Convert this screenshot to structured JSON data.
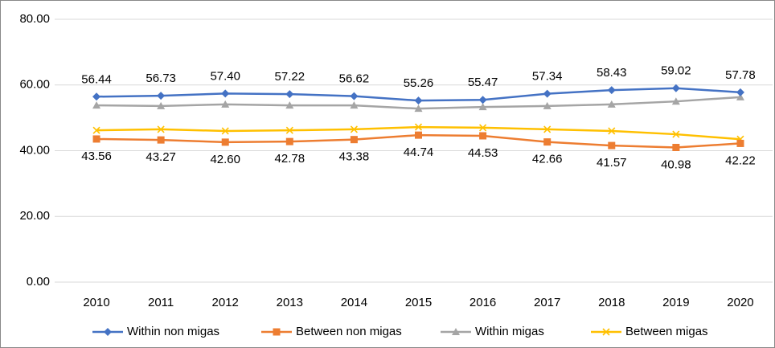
{
  "chart_data": {
    "type": "line",
    "categories": [
      "2010",
      "2011",
      "2012",
      "2013",
      "2014",
      "2015",
      "2016",
      "2017",
      "2018",
      "2019",
      "2020"
    ],
    "series": [
      {
        "name": "Within non migas",
        "color": "#4472c4",
        "marker": "diamond",
        "label_position": "above",
        "values": [
          56.44,
          56.73,
          57.4,
          57.22,
          56.62,
          55.26,
          55.47,
          57.34,
          58.43,
          59.02,
          57.78
        ],
        "value_labels": [
          "56.44",
          "56.73",
          "57.40",
          "57.22",
          "56.62",
          "55.26",
          "55.47",
          "57.34",
          "58.43",
          "59.02",
          "57.78"
        ]
      },
      {
        "name": "Between non migas",
        "color": "#ed7d31",
        "marker": "square",
        "label_position": "below",
        "values": [
          43.56,
          43.27,
          42.6,
          42.78,
          43.38,
          44.74,
          44.53,
          42.66,
          41.57,
          40.98,
          42.22
        ],
        "value_labels": [
          "43.56",
          "43.27",
          "42.60",
          "42.78",
          "43.38",
          "44.74",
          "44.53",
          "42.66",
          "41.57",
          "40.98",
          "42.22"
        ]
      },
      {
        "name": "Within migas",
        "color": "#a5a5a5",
        "marker": "triangle",
        "values": [
          53.8,
          53.6,
          54.1,
          53.8,
          53.8,
          52.8,
          53.3,
          53.6,
          54.1,
          55.0,
          56.3
        ]
      },
      {
        "name": "Between migas",
        "color": "#ffc000",
        "marker": "x",
        "values": [
          46.2,
          46.5,
          46.0,
          46.2,
          46.5,
          47.2,
          47.0,
          46.5,
          46.0,
          45.0,
          43.5
        ]
      }
    ],
    "ylim": [
      0,
      80
    ],
    "yticks": [
      {
        "value": 0,
        "label": "0.00"
      },
      {
        "value": 20,
        "label": "20.00"
      },
      {
        "value": 40,
        "label": "40.00"
      },
      {
        "value": 60,
        "label": "60.00"
      },
      {
        "value": 80,
        "label": "80.00"
      }
    ],
    "grid": true,
    "legend": "bottom"
  }
}
